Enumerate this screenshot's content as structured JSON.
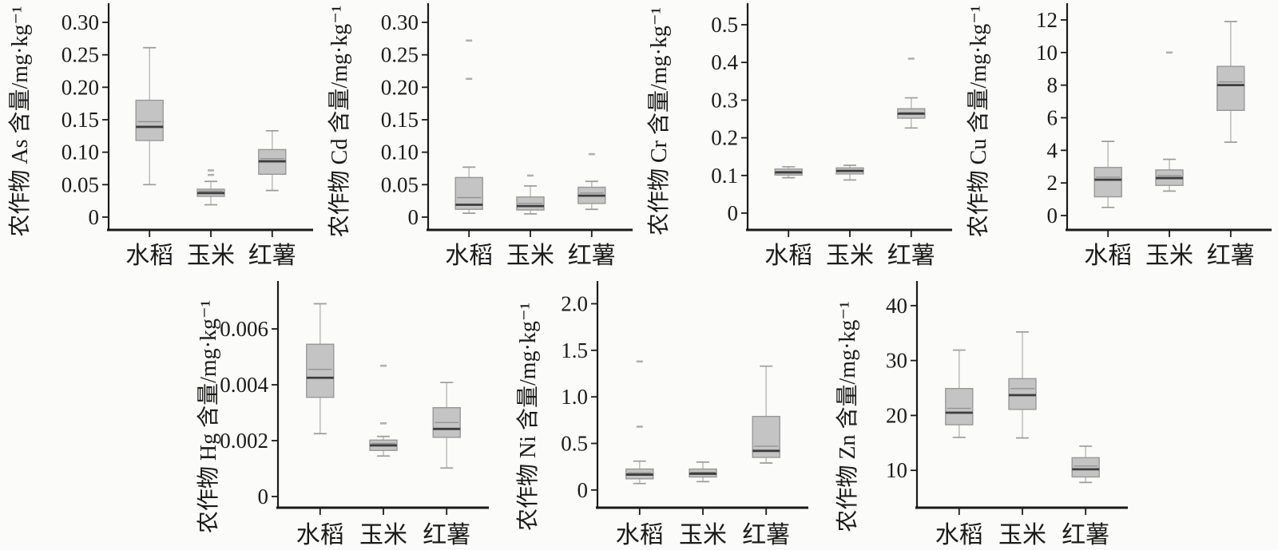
{
  "style": {
    "background": "#fbfbfa",
    "axis_color": "#1a1a1a",
    "text_color": "#1a1a1a",
    "box_fill": "#c4c4c4",
    "box_stroke": "#989898",
    "median_color": "#3d3d3d",
    "mean_color": "#8f8f8f",
    "whisker_color": "#bcbcbc",
    "cap_color": "#9b9b9b",
    "outlier_color": "#b0b0b0"
  },
  "figure": {
    "categories": [
      "水稻",
      "玉米",
      "红薯"
    ],
    "category_keys": [
      "rice",
      "corn",
      "sweet-potato"
    ],
    "unit": "mg·kg⁻¹"
  },
  "chart_data": [
    {
      "type": "box",
      "element": "As",
      "row": 1,
      "ylabel": "农作物 As 含量/mg·kg⁻¹",
      "ylim": [
        -0.0197,
        0.3246
      ],
      "yticks": [
        0,
        0.05,
        0.1,
        0.15,
        0.2,
        0.25,
        0.3
      ],
      "ytick_labels": [
        "0",
        "0.05",
        "0.10",
        "0.15",
        "0.20",
        "0.25",
        "0.30"
      ],
      "categories": [
        "水稻",
        "玉米",
        "红薯"
      ],
      "series": [
        {
          "category": "水稻",
          "whisker_low": 0.05,
          "q1": 0.118,
          "median": 0.139,
          "mean": 0.147,
          "q3": 0.18,
          "whisker_high": 0.261,
          "outliers": []
        },
        {
          "category": "玉米",
          "whisker_low": 0.019,
          "q1": 0.032,
          "median": 0.037,
          "mean": 0.04,
          "q3": 0.043,
          "whisker_high": 0.055,
          "outliers": [
            0.065,
            0.072
          ]
        },
        {
          "category": "红薯",
          "whisker_low": 0.041,
          "q1": 0.066,
          "median": 0.086,
          "mean": 0.09,
          "q3": 0.104,
          "whisker_high": 0.133,
          "outliers": []
        }
      ]
    },
    {
      "type": "box",
      "element": "Cd",
      "row": 1,
      "ylabel": "农作物 Cd 含量/mg·kg⁻¹",
      "ylim": [
        -0.0197,
        0.3246
      ],
      "yticks": [
        0,
        0.05,
        0.1,
        0.15,
        0.2,
        0.25,
        0.3
      ],
      "ytick_labels": [
        "0",
        "0.05",
        "0.10",
        "0.15",
        "0.20",
        "0.25",
        "0.30"
      ],
      "categories": [
        "水稻",
        "玉米",
        "红薯"
      ],
      "series": [
        {
          "category": "水稻",
          "whisker_low": 0.006,
          "q1": 0.012,
          "median": 0.019,
          "mean": 0.03,
          "q3": 0.061,
          "whisker_high": 0.077,
          "outliers": [
            0.213,
            0.272
          ]
        },
        {
          "category": "玉米",
          "whisker_low": 0.005,
          "q1": 0.011,
          "median": 0.017,
          "mean": 0.021,
          "q3": 0.031,
          "whisker_high": 0.048,
          "outliers": [
            0.064
          ]
        },
        {
          "category": "红薯",
          "whisker_low": 0.012,
          "q1": 0.021,
          "median": 0.033,
          "mean": 0.037,
          "q3": 0.046,
          "whisker_high": 0.055,
          "outliers": [
            0.097
          ]
        }
      ]
    },
    {
      "type": "box",
      "element": "Cr",
      "row": 1,
      "ylabel": "农作物 Cr 含量/mg·kg⁻¹",
      "ylim": [
        -0.0445,
        0.5487
      ],
      "yticks": [
        0,
        0.1,
        0.2,
        0.3,
        0.4,
        0.5
      ],
      "ytick_labels": [
        "0",
        "0.1",
        "0.2",
        "0.3",
        "0.4",
        "0.5"
      ],
      "categories": [
        "水稻",
        "玉米",
        "红薯"
      ],
      "series": [
        {
          "category": "水稻",
          "whisker_low": 0.094,
          "q1": 0.101,
          "median": 0.108,
          "mean": 0.111,
          "q3": 0.117,
          "whisker_high": 0.123,
          "outliers": []
        },
        {
          "category": "玉米",
          "whisker_low": 0.088,
          "q1": 0.104,
          "median": 0.112,
          "mean": 0.114,
          "q3": 0.12,
          "whisker_high": 0.127,
          "outliers": []
        },
        {
          "category": "红薯",
          "whisker_low": 0.226,
          "q1": 0.252,
          "median": 0.264,
          "mean": 0.267,
          "q3": 0.277,
          "whisker_high": 0.306,
          "outliers": [
            0.41
          ]
        }
      ]
    },
    {
      "type": "box",
      "element": "Cu",
      "row": 1,
      "ylabel": "农作物 Cu 含量/mg·kg⁻¹",
      "ylim": [
        -0.88,
        12.83
      ],
      "yticks": [
        0,
        2,
        4,
        6,
        8,
        10,
        12
      ],
      "ytick_labels": [
        "0",
        "2",
        "4",
        "6",
        "8",
        "10",
        "12"
      ],
      "categories": [
        "水稻",
        "玉米",
        "红薯"
      ],
      "series": [
        {
          "category": "水稻",
          "whisker_low": 0.5,
          "q1": 1.15,
          "median": 2.2,
          "mean": 2.35,
          "q3": 2.95,
          "whisker_high": 4.55,
          "outliers": []
        },
        {
          "category": "玉米",
          "whisker_low": 1.5,
          "q1": 1.85,
          "median": 2.3,
          "mean": 2.45,
          "q3": 2.8,
          "whisker_high": 3.45,
          "outliers": [
            10.0
          ]
        },
        {
          "category": "红薯",
          "whisker_low": 4.5,
          "q1": 6.45,
          "median": 8.0,
          "mean": 8.2,
          "q3": 9.15,
          "whisker_high": 11.9,
          "outliers": []
        }
      ]
    },
    {
      "type": "box",
      "element": "Hg",
      "row": 2,
      "ylabel": "农作物 Hg 含量/mg·kg⁻¹",
      "ylim": [
        -0.0004,
        0.0076
      ],
      "yticks": [
        0,
        0.002,
        0.004,
        0.006
      ],
      "ytick_labels": [
        "0",
        "0.002",
        "0.004",
        "0.006"
      ],
      "categories": [
        "水稻",
        "玉米",
        "红薯"
      ],
      "series": [
        {
          "category": "水稻",
          "whisker_low": 0.00225,
          "q1": 0.00355,
          "median": 0.00425,
          "mean": 0.00455,
          "q3": 0.00545,
          "whisker_high": 0.0069,
          "outliers": []
        },
        {
          "category": "玉米",
          "whisker_low": 0.00145,
          "q1": 0.00165,
          "median": 0.00183,
          "mean": 0.0019,
          "q3": 0.00202,
          "whisker_high": 0.00215,
          "outliers": [
            0.00262,
            0.00468
          ]
        },
        {
          "category": "红薯",
          "whisker_low": 0.00102,
          "q1": 0.00212,
          "median": 0.00242,
          "mean": 0.00265,
          "q3": 0.00318,
          "whisker_high": 0.00408,
          "outliers": []
        }
      ]
    },
    {
      "type": "box",
      "element": "Ni",
      "row": 2,
      "ylabel": "农作物 Ni 含量/mg·kg⁻¹",
      "ylim": [
        -0.19,
        2.21
      ],
      "yticks": [
        0,
        0.5,
        1.0,
        1.5,
        2.0
      ],
      "ytick_labels": [
        "0",
        "0.5",
        "1.0",
        "1.5",
        "2.0"
      ],
      "categories": [
        "水稻",
        "玉米",
        "红薯"
      ],
      "series": [
        {
          "category": "水稻",
          "whisker_low": 0.07,
          "q1": 0.12,
          "median": 0.165,
          "mean": 0.185,
          "q3": 0.225,
          "whisker_high": 0.31,
          "outliers": [
            0.68,
            1.38
          ]
        },
        {
          "category": "玉米",
          "whisker_low": 0.09,
          "q1": 0.14,
          "median": 0.175,
          "mean": 0.19,
          "q3": 0.225,
          "whisker_high": 0.3,
          "outliers": []
        },
        {
          "category": "红薯",
          "whisker_low": 0.29,
          "q1": 0.35,
          "median": 0.42,
          "mean": 0.47,
          "q3": 0.79,
          "whisker_high": 1.33,
          "outliers": []
        }
      ]
    },
    {
      "type": "box",
      "element": "Zn",
      "row": 2,
      "ylabel": "农作物 Zn 含量/mg·kg⁻¹",
      "ylim": [
        3.2,
        43.9
      ],
      "yticks": [
        10,
        20,
        30,
        40
      ],
      "ytick_labels": [
        "10",
        "20",
        "30",
        "40"
      ],
      "categories": [
        "水稻",
        "玉米",
        "红薯"
      ],
      "series": [
        {
          "category": "水稻",
          "whisker_low": 16.0,
          "q1": 18.3,
          "median": 20.5,
          "mean": 21.3,
          "q3": 24.9,
          "whisker_high": 31.9,
          "outliers": []
        },
        {
          "category": "玉米",
          "whisker_low": 15.9,
          "q1": 21.1,
          "median": 23.7,
          "mean": 24.9,
          "q3": 26.7,
          "whisker_high": 35.2,
          "outliers": []
        },
        {
          "category": "红薯",
          "whisker_low": 7.8,
          "q1": 8.8,
          "median": 10.2,
          "mean": 10.8,
          "q3": 12.3,
          "whisker_high": 14.4,
          "outliers": []
        }
      ]
    }
  ]
}
